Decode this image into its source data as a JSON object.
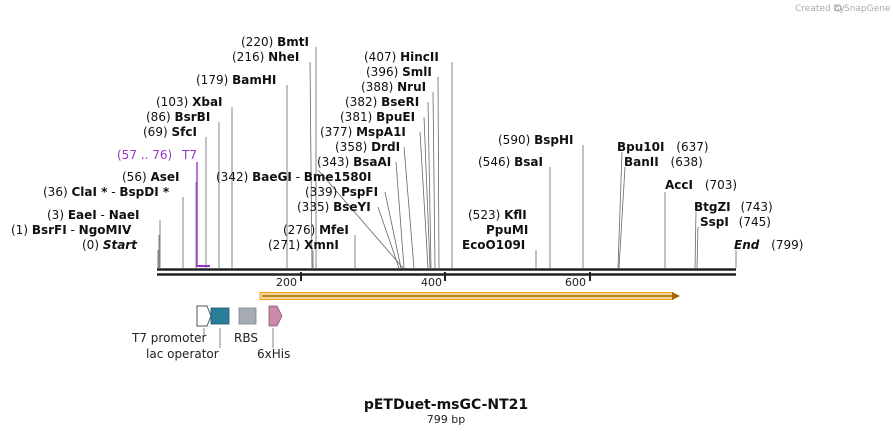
{
  "credit": "Created by",
  "brand": "SnapGene",
  "title": "pETDuet-msGC-NT21",
  "length_label": "799 bp",
  "colors": {
    "backbone": "#222222",
    "orf": "#f4a21a",
    "t7": "#9a35c9",
    "lac": "#2a7e96",
    "rbs": "#a6aab2",
    "his": "#c98ca8"
  },
  "ticks": [
    "200",
    "400",
    "600"
  ],
  "sites": [
    {
      "pos": "(0)",
      "name": "Start",
      "kind": "italic"
    },
    {
      "pos": "(1)",
      "name": "BsrFI",
      "extra": "NgoMIV"
    },
    {
      "pos": "(3)",
      "name": "EaeI",
      "extra": "NaeI"
    },
    {
      "pos": "(36)",
      "name": "ClaI *",
      "extra": "BspDI *"
    },
    {
      "pos": "(56)",
      "name": "AseI"
    },
    {
      "pos": "(57 .. 76)",
      "name": "T7",
      "kind": "primer"
    },
    {
      "pos": "(69)",
      "name": "SfcI"
    },
    {
      "pos": "(86)",
      "name": "BsrBI"
    },
    {
      "pos": "(103)",
      "name": "XbaI"
    },
    {
      "pos": "(179)",
      "name": "BamHI"
    },
    {
      "pos": "(216)",
      "name": "NheI"
    },
    {
      "pos": "(220)",
      "name": "BmtI"
    },
    {
      "pos": "(271)",
      "name": "XmnI"
    },
    {
      "pos": "(276)",
      "name": "MfeI"
    },
    {
      "pos": "(342)",
      "name": "BaeGI",
      "extra": "Bme1580I"
    },
    {
      "pos": "(335)",
      "name": "BseYI"
    },
    {
      "pos": "(339)",
      "name": "PspFI"
    },
    {
      "pos": "(343)",
      "name": "BsaAI"
    },
    {
      "pos": "(358)",
      "name": "DrdI"
    },
    {
      "pos": "(377)",
      "name": "MspA1I"
    },
    {
      "pos": "(381)",
      "name": "BpuEI"
    },
    {
      "pos": "(382)",
      "name": "BseRI"
    },
    {
      "pos": "(388)",
      "name": "NruI"
    },
    {
      "pos": "(396)",
      "name": "SmlI"
    },
    {
      "pos": "(407)",
      "name": "HincII"
    },
    {
      "pos": "(523)",
      "name": "KflI",
      "extra2": "PpuMI",
      "extra3": "EcoO109I"
    },
    {
      "pos": "(546)",
      "name": "BsaI"
    },
    {
      "pos": "(590)",
      "name": "BspHI"
    },
    {
      "pos": "(637)",
      "name": "Bpu10I"
    },
    {
      "pos": "(638)",
      "name": "BanII"
    },
    {
      "pos": "(703)",
      "name": "AccI"
    },
    {
      "pos": "(743)",
      "name": "BtgZI"
    },
    {
      "pos": "(745)",
      "name": "SspI"
    },
    {
      "pos": "(799)",
      "name": "End",
      "kind": "italic"
    }
  ],
  "features": {
    "t7_promoter": "T7 promoter",
    "lac_operator": "lac operator",
    "rbs": "RBS",
    "his": "6xHis"
  }
}
